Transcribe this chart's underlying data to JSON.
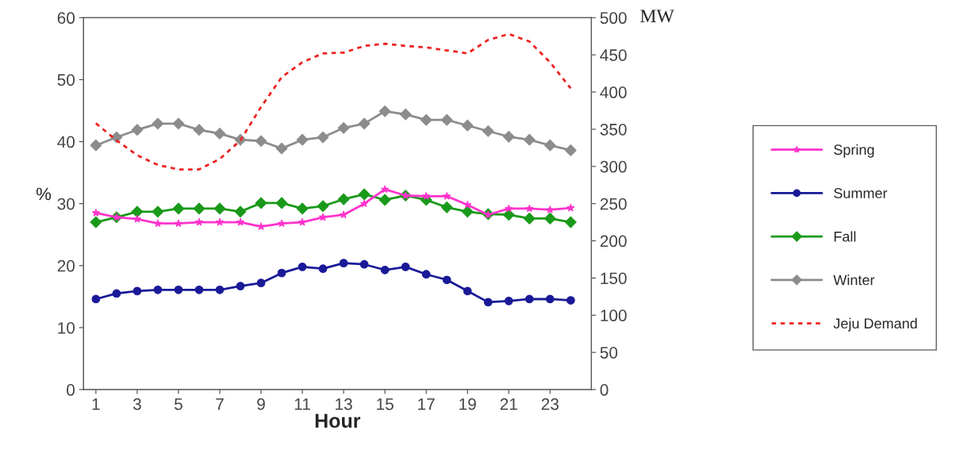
{
  "chart_data": {
    "type": "line",
    "xlabel": "Hour",
    "ylabel": "%",
    "y2label": "MW",
    "x": [
      1,
      2,
      3,
      4,
      5,
      6,
      7,
      8,
      9,
      10,
      11,
      12,
      13,
      14,
      15,
      16,
      17,
      18,
      19,
      20,
      21,
      22,
      23,
      24
    ],
    "xlim": [
      0.4,
      25
    ],
    "xticks": [
      1,
      3,
      5,
      7,
      9,
      11,
      13,
      15,
      17,
      19,
      21,
      23
    ],
    "ylim": [
      0,
      60
    ],
    "yticks": [
      0,
      10,
      20,
      30,
      40,
      50,
      60
    ],
    "y2lim": [
      0,
      500
    ],
    "y2ticks": [
      0,
      50,
      100,
      150,
      200,
      250,
      300,
      350,
      400,
      450,
      500
    ],
    "grid": false,
    "legend": "right",
    "series": [
      {
        "name": "Spring",
        "color": "#ff33cc",
        "marker": "star",
        "values": [
          28.5,
          27.8,
          27.5,
          26.8,
          26.8,
          27,
          27,
          27,
          26.3,
          26.8,
          27,
          27.8,
          28.2,
          30,
          32.3,
          31.3,
          31.2,
          31.2,
          29.8,
          28.2,
          29.2,
          29.2,
          29,
          29.3
        ]
      },
      {
        "name": "Summer",
        "color": "#1a1a99",
        "marker": "circle",
        "values": [
          14.6,
          15.5,
          15.9,
          16.1,
          16.1,
          16.1,
          16.1,
          16.7,
          17.2,
          18.8,
          19.8,
          19.5,
          20.4,
          20.2,
          19.3,
          19.8,
          18.6,
          17.7,
          15.9,
          14.1,
          14.3,
          14.6,
          14.6,
          14.4
        ]
      },
      {
        "name": "Fall",
        "color": "#1a9a1a",
        "marker": "diamond",
        "values": [
          27,
          27.8,
          28.7,
          28.7,
          29.2,
          29.2,
          29.2,
          28.7,
          30.1,
          30.1,
          29.2,
          29.6,
          30.7,
          31.5,
          30.6,
          31.3,
          30.6,
          29.4,
          28.7,
          28.3,
          28.2,
          27.6,
          27.6,
          27
        ]
      },
      {
        "name": "Winter",
        "color": "#8c8c8c",
        "marker": "diamond",
        "values": [
          39.4,
          40.7,
          41.9,
          42.9,
          42.9,
          41.9,
          41.3,
          40.3,
          40.1,
          38.9,
          40.3,
          40.7,
          42.2,
          42.9,
          44.9,
          44.4,
          43.5,
          43.5,
          42.6,
          41.7,
          40.8,
          40.3,
          39.4,
          38.6
        ]
      },
      {
        "name": "Jeju Demand",
        "color": "#ee2222",
        "axis": "y2",
        "marker": "none",
        "line_style": "dashed",
        "values": [
          358,
          335,
          315,
          302,
          296,
          296,
          310,
          335,
          380,
          420,
          440,
          452,
          453,
          462,
          465,
          462,
          460,
          456,
          452,
          470,
          478,
          468,
          440,
          405
        ]
      }
    ]
  }
}
